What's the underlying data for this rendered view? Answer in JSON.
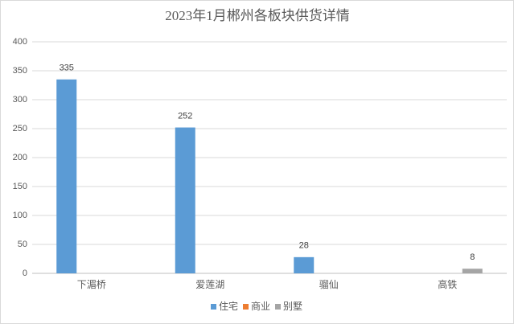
{
  "chart_data": {
    "type": "bar",
    "title": "2023年1月郴州各板块供货详情",
    "categories": [
      "下湄桥",
      "爱莲湖",
      "骝仙",
      "高铁"
    ],
    "series": [
      {
        "name": "住宅",
        "color": "#5b9bd5",
        "values": [
          335,
          252,
          28,
          null
        ]
      },
      {
        "name": "商业",
        "color": "#ed7d31",
        "values": [
          null,
          null,
          null,
          null
        ]
      },
      {
        "name": "别墅",
        "color": "#a5a5a5",
        "values": [
          null,
          null,
          null,
          8
        ]
      }
    ],
    "ylim": [
      0,
      400
    ],
    "yticks": [
      0,
      50,
      100,
      150,
      200,
      250,
      300,
      350,
      400
    ],
    "grid": true
  }
}
